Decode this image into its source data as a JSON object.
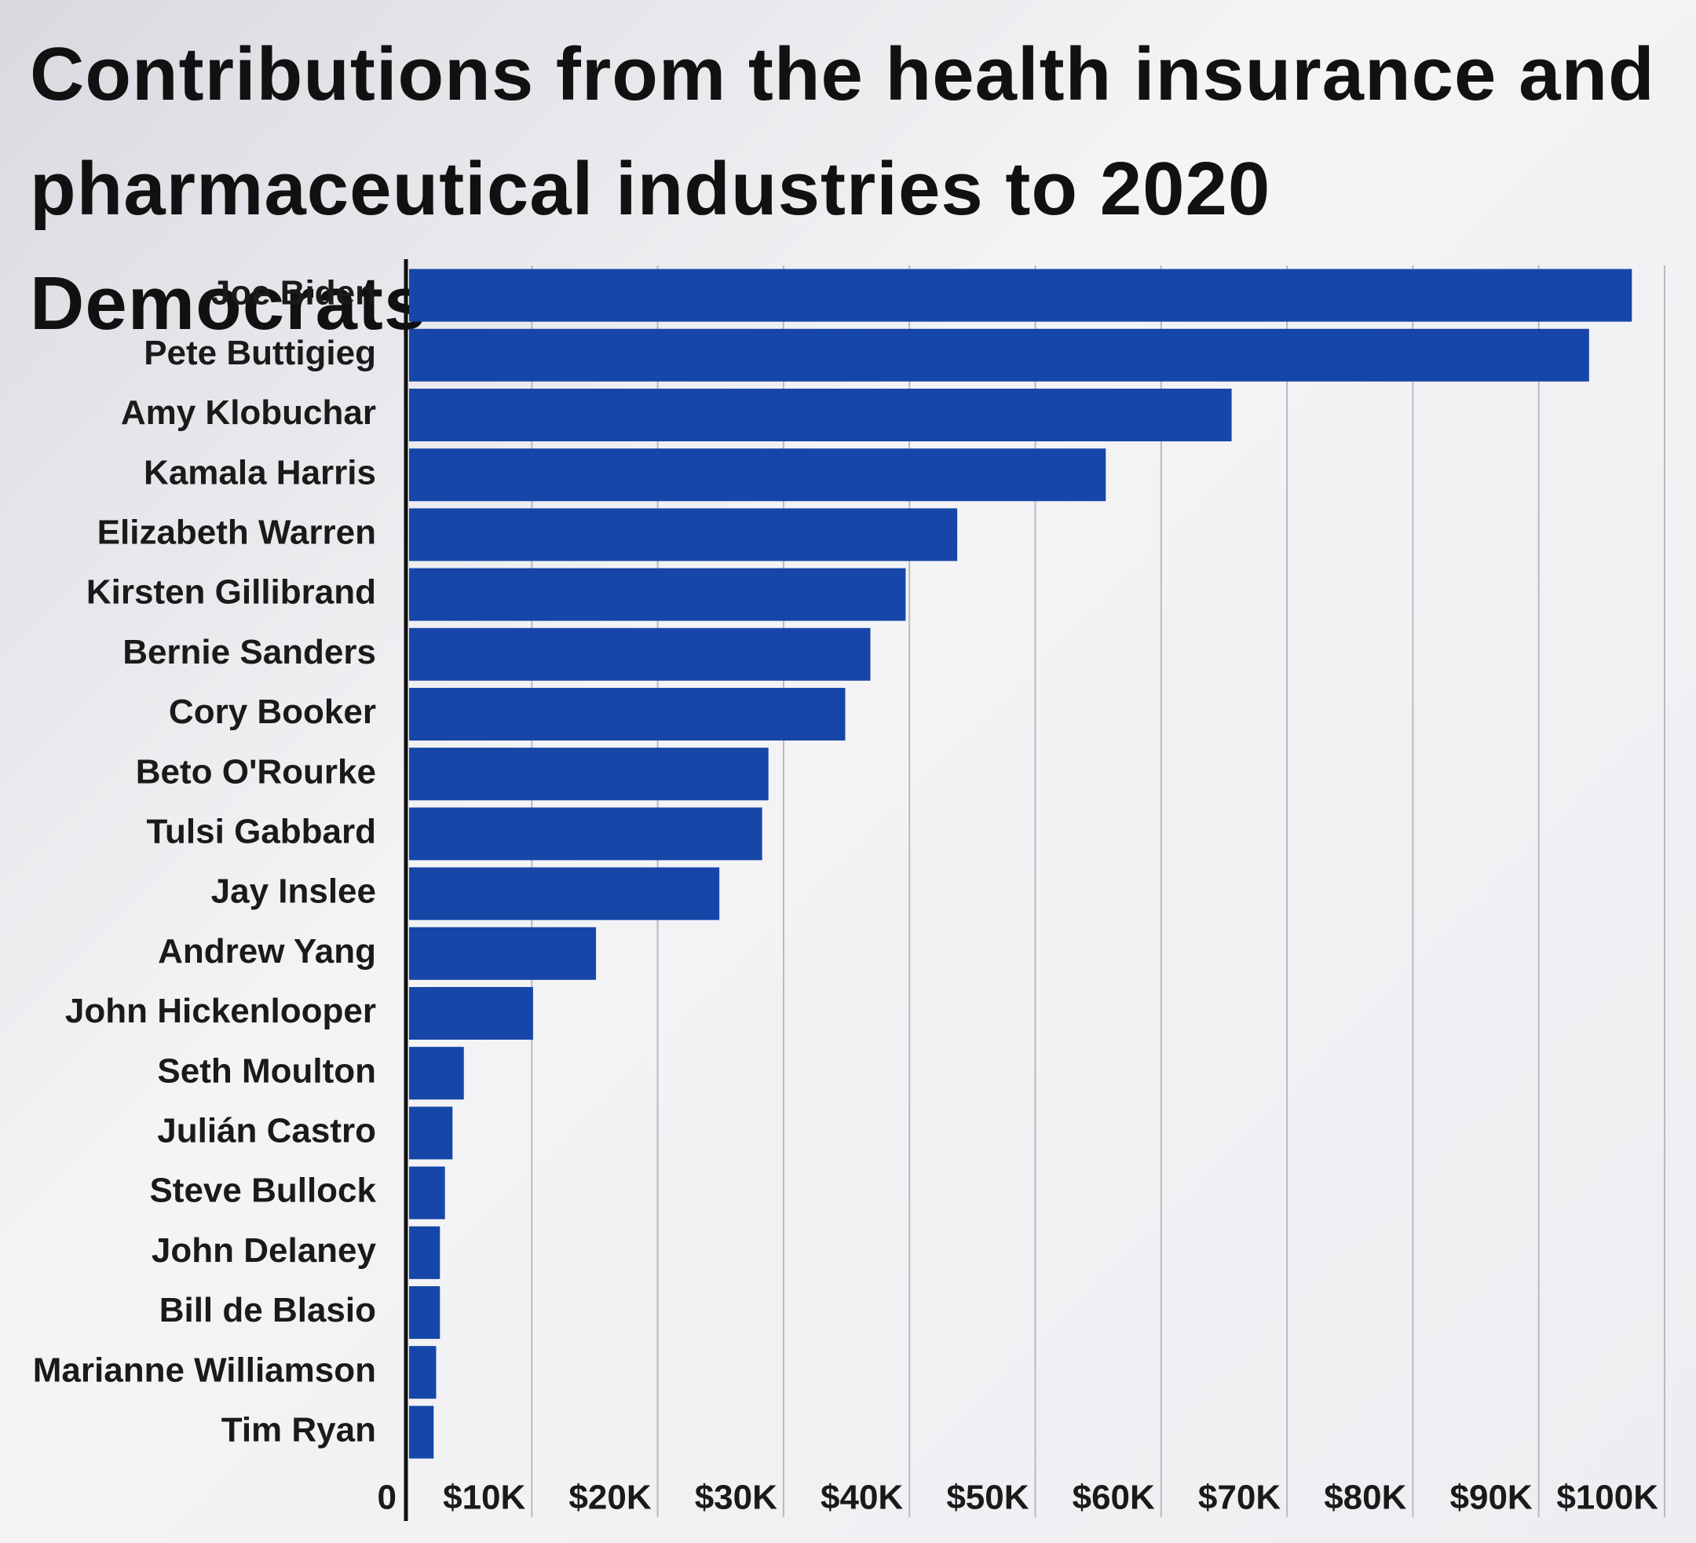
{
  "chart_data": {
    "type": "hbar",
    "title": "Contributions from the health insurance and pharmaceutical industries to 2020 Democrats",
    "categories": [
      "Joe Biden",
      "Pete Buttigieg",
      "Amy Klobuchar",
      "Kamala Harris",
      "Elizabeth Warren",
      "Kirsten Gillibrand",
      "Bernie Sanders",
      "Cory Booker",
      "Beto O'Rourke",
      "Tulsi Gabbard",
      "Jay Inslee",
      "Andrew Yang",
      "John Hickenlooper",
      "Seth Moulton",
      "Julián Castro",
      "Steve Bullock",
      "John Delaney",
      "Bill de Blasio",
      "Marianne Williamson",
      "Tim Ryan"
    ],
    "values": [
      97400,
      94000,
      65600,
      55600,
      43800,
      39700,
      36900,
      34900,
      28800,
      28300,
      24900,
      15100,
      10100,
      4600,
      3700,
      3100,
      2700,
      2700,
      2400,
      2200
    ],
    "color": "#1646a8",
    "xlim": [
      0,
      100000
    ],
    "xticks": [
      0,
      {
        "value": 10000,
        "label": "$10K"
      },
      {
        "value": 20000,
        "label": "$20K"
      },
      {
        "value": 30000,
        "label": "$30K"
      },
      {
        "value": 40000,
        "label": "$40K"
      },
      {
        "value": 50000,
        "label": "$50K"
      },
      {
        "value": 60000,
        "label": "$60K"
      },
      {
        "value": 70000,
        "label": "$70K"
      },
      {
        "value": 80000,
        "label": "$80K"
      },
      {
        "value": 90000,
        "label": "$90K"
      },
      {
        "value": 100000,
        "label": "$100K"
      }
    ],
    "grid": true
  }
}
